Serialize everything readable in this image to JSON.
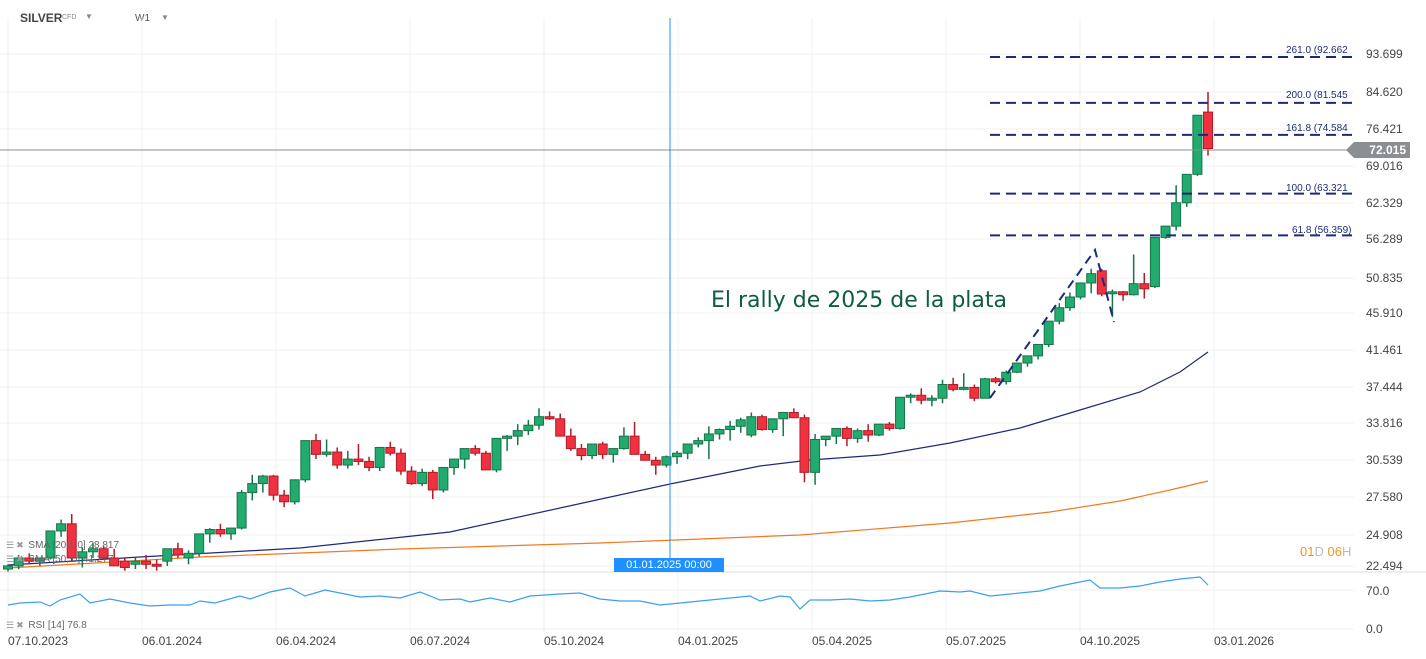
{
  "header": {
    "symbol": "SILVER",
    "symbol_type": "CFD",
    "interval": "W1"
  },
  "annotation": "El rally de 2025 de la plata",
  "last_price": "72.015",
  "crosshair_label": "01.01.2025 00:00",
  "countdown": {
    "days": "01",
    "days_unit": "D",
    "hours": "06",
    "hours_unit": "H"
  },
  "indicators": {
    "sma200": "SMA [200, 0] 28.817",
    "sma50": "SMA [50, 0] 41.277",
    "rsi": "RSI [14] 76.8"
  },
  "y_axis": [
    "93.699",
    "84.620",
    "76.421",
    "69.016",
    "62.329",
    "56.289",
    "50.835",
    "45.910",
    "41.461",
    "37.444",
    "33.816",
    "30.539",
    "27.580",
    "24.908",
    "22.494"
  ],
  "rsi_axis": [
    "70.0",
    "0.0"
  ],
  "x_axis": [
    "07.10.2023",
    "06.01.2024",
    "06.04.2024",
    "06.07.2024",
    "05.10.2024",
    "04.01.2025",
    "05.04.2025",
    "05.07.2025",
    "04.10.2025",
    "03.01.2026"
  ],
  "fibonacci": [
    {
      "label": "261.0 (92.662",
      "price": 92.662
    },
    {
      "label": "200.0 (81.545",
      "price": 81.545
    },
    {
      "label": "161.8 (74.584",
      "price": 74.584
    },
    {
      "label": "100.0 (63.321",
      "price": 63.321
    },
    {
      "label": "61.8 (56.359)",
      "price": 56.359
    }
  ],
  "colors": {
    "up": "#22ab6e",
    "down": "#f0313f",
    "sma50": "#1e2a78",
    "sma200": "#f07a22",
    "rsi": "#3aa0f0",
    "fib": "#1e2a78",
    "crosshair": "#1e90ff",
    "annotation": "#0c5e3e"
  },
  "chart_data": {
    "type": "candlestick",
    "title": "SILVER CFD W1",
    "annotation": "El rally de 2025 de la plata",
    "scale": "log",
    "ylim": [
      22.0,
      96.0
    ],
    "x_tick_labels": [
      "07.10.2023",
      "06.01.2024",
      "06.04.2024",
      "06.07.2024",
      "05.10.2024",
      "04.01.2025",
      "05.04.2025",
      "05.07.2025",
      "04.10.2025",
      "03.01.2026"
    ],
    "last_price": 72.015,
    "fibonacci_levels": [
      {
        "ratio": 261.0,
        "price": 92.662
      },
      {
        "ratio": 200.0,
        "price": 81.545
      },
      {
        "ratio": 161.8,
        "price": 74.584
      },
      {
        "ratio": 100.0,
        "price": 63.321
      },
      {
        "ratio": 61.8,
        "price": 56.359
      }
    ],
    "indicators": [
      {
        "name": "SMA 200",
        "last": 28.817
      },
      {
        "name": "SMA 50",
        "last": 41.277
      },
      {
        "name": "RSI 14",
        "last": 76.8,
        "levels": [
          70.0,
          0.0
        ]
      }
    ],
    "candles_approx": [
      [
        22.3,
        22.6,
        22.1,
        22.5
      ],
      [
        22.5,
        23.2,
        22.3,
        23.0
      ],
      [
        23.0,
        23.3,
        22.6,
        22.8
      ],
      [
        22.8,
        23.0,
        22.5,
        23.0
      ],
      [
        23.0,
        23.6,
        22.9,
        24.8
      ],
      [
        24.8,
        25.6,
        24.4,
        25.3
      ],
      [
        25.3,
        26.0,
        22.8,
        23.0
      ],
      [
        23.0,
        23.7,
        22.4,
        23.4
      ],
      [
        23.4,
        24.0,
        23.0,
        23.6
      ],
      [
        23.6,
        23.8,
        22.9,
        23.0
      ],
      [
        23.0,
        23.6,
        22.6,
        22.5
      ],
      [
        22.8,
        23.0,
        22.2,
        22.4
      ],
      [
        22.6,
        23.0,
        22.3,
        22.8
      ],
      [
        22.8,
        23.2,
        22.3,
        22.6
      ],
      [
        22.6,
        22.9,
        22.2,
        22.5
      ],
      [
        22.8,
        23.6,
        22.5,
        23.6
      ],
      [
        23.6,
        24.0,
        23.0,
        23.2
      ],
      [
        23.0,
        23.5,
        22.6,
        23.3
      ],
      [
        23.3,
        24.2,
        23.1,
        24.6
      ],
      [
        24.6,
        25.0,
        24.0,
        24.9
      ],
      [
        24.9,
        25.3,
        24.4,
        24.6
      ],
      [
        24.6,
        24.9,
        24.2,
        25.0
      ],
      [
        25.0,
        27.8,
        24.9,
        27.6
      ],
      [
        27.6,
        29.0,
        27.0,
        28.3
      ],
      [
        28.3,
        29.0,
        27.6,
        28.9
      ],
      [
        28.9,
        29.0,
        27.0,
        27.4
      ],
      [
        27.4,
        27.8,
        26.5,
        26.9
      ],
      [
        26.9,
        28.3,
        26.7,
        28.6
      ],
      [
        28.6,
        31.0,
        28.4,
        31.9
      ],
      [
        31.9,
        32.5,
        30.3,
        30.7
      ],
      [
        30.7,
        32.0,
        30.5,
        30.9
      ],
      [
        30.9,
        31.3,
        29.5,
        29.8
      ],
      [
        29.8,
        31.0,
        29.5,
        30.3
      ],
      [
        30.3,
        31.6,
        29.8,
        30.1
      ],
      [
        30.1,
        30.5,
        29.3,
        29.6
      ],
      [
        29.6,
        31.0,
        29.3,
        31.3
      ],
      [
        31.3,
        31.8,
        30.6,
        30.8
      ],
      [
        30.8,
        31.2,
        29.0,
        29.3
      ],
      [
        29.3,
        29.7,
        28.2,
        28.3
      ],
      [
        28.3,
        29.5,
        28.1,
        29.2
      ],
      [
        29.2,
        29.4,
        27.1,
        27.8
      ],
      [
        27.8,
        29.6,
        27.6,
        29.6
      ],
      [
        29.6,
        30.2,
        29.0,
        30.3
      ],
      [
        30.3,
        30.7,
        29.5,
        31.2
      ],
      [
        31.2,
        31.5,
        30.6,
        30.8
      ],
      [
        30.8,
        31.0,
        29.8,
        29.4
      ],
      [
        29.4,
        32.1,
        29.2,
        32.1
      ],
      [
        32.1,
        32.4,
        31.0,
        32.3
      ],
      [
        32.3,
        33.4,
        31.5,
        32.8
      ],
      [
        32.8,
        33.8,
        32.4,
        33.3
      ],
      [
        33.3,
        34.9,
        32.9,
        34.1
      ],
      [
        34.1,
        34.6,
        33.8,
        33.9
      ],
      [
        33.9,
        34.4,
        32.3,
        32.3
      ],
      [
        32.3,
        33.0,
        31.0,
        31.2
      ],
      [
        31.2,
        31.6,
        30.2,
        30.6
      ],
      [
        30.6,
        31.6,
        30.3,
        31.6
      ],
      [
        31.6,
        31.8,
        30.3,
        30.7
      ],
      [
        30.7,
        31.0,
        30.0,
        31.2
      ],
      [
        31.2,
        33.1,
        31.1,
        32.3
      ],
      [
        32.3,
        33.6,
        31.1,
        30.7
      ],
      [
        30.7,
        31.0,
        30.3,
        30.2
      ],
      [
        30.2,
        30.5,
        29.0,
        29.8
      ],
      [
        29.8,
        30.6,
        29.6,
        30.5
      ],
      [
        30.5,
        31.0,
        29.9,
        30.8
      ],
      [
        30.8,
        31.5,
        30.3,
        31.6
      ],
      [
        31.6,
        32.2,
        31.3,
        31.9
      ],
      [
        31.9,
        33.2,
        30.3,
        32.5
      ],
      [
        32.5,
        33.0,
        32.0,
        32.9
      ],
      [
        32.9,
        33.7,
        31.9,
        33.2
      ],
      [
        33.2,
        34.0,
        32.6,
        33.8
      ],
      [
        32.4,
        34.5,
        32.2,
        34.1
      ],
      [
        34.1,
        34.3,
        32.8,
        32.9
      ],
      [
        32.9,
        33.5,
        32.6,
        33.9
      ],
      [
        33.9,
        34.5,
        32.3,
        34.5
      ],
      [
        34.5,
        34.9,
        34.0,
        34.0
      ],
      [
        34.0,
        34.3,
        28.4,
        29.2
      ],
      [
        29.2,
        32.5,
        28.2,
        32.0
      ],
      [
        32.0,
        32.3,
        31.4,
        32.3
      ],
      [
        32.3,
        32.9,
        31.6,
        33.0
      ],
      [
        33.0,
        33.2,
        31.4,
        32.1
      ],
      [
        32.1,
        33.0,
        31.7,
        32.8
      ],
      [
        32.8,
        33.4,
        31.8,
        32.4
      ],
      [
        32.4,
        33.4,
        32.3,
        33.4
      ],
      [
        33.4,
        33.6,
        32.8,
        33.0
      ],
      [
        33.0,
        36.0,
        32.9,
        36.0
      ],
      [
        36.0,
        36.4,
        35.4,
        36.2
      ],
      [
        36.2,
        36.9,
        35.3,
        35.7
      ],
      [
        35.7,
        36.2,
        35.1,
        35.9
      ],
      [
        35.9,
        37.8,
        35.4,
        37.3
      ],
      [
        37.3,
        38.0,
        36.6,
        36.8
      ],
      [
        36.8,
        38.5,
        36.7,
        37.0
      ],
      [
        37.0,
        37.3,
        35.6,
        35.9
      ],
      [
        35.9,
        38.0,
        35.9,
        37.9
      ],
      [
        37.9,
        38.1,
        37.4,
        37.6
      ],
      [
        37.6,
        38.8,
        37.3,
        38.6
      ],
      [
        38.6,
        39.5,
        38.5,
        39.6
      ],
      [
        39.6,
        40.3,
        39.2,
        40.4
      ],
      [
        40.4,
        41.5,
        40.0,
        41.7
      ],
      [
        41.7,
        44.2,
        41.4,
        44.5
      ],
      [
        44.5,
        46.8,
        44.1,
        46.2
      ],
      [
        46.2,
        48.2,
        45.8,
        47.6
      ],
      [
        47.6,
        49.2,
        47.3,
        49.5
      ],
      [
        49.5,
        51.5,
        48.1,
        50.8
      ],
      [
        51.2,
        51.5,
        47.7,
        48.0
      ],
      [
        48.1,
        48.6,
        45.0,
        48.3
      ],
      [
        48.3,
        48.4,
        47.1,
        47.9
      ],
      [
        47.9,
        53.6,
        47.8,
        49.4
      ],
      [
        49.4,
        50.9,
        47.4,
        48.7
      ],
      [
        49.0,
        56.2,
        48.8,
        56.2
      ],
      [
        56.2,
        57.2,
        56.0,
        58.0
      ],
      [
        58.0,
        65.0,
        57.3,
        61.9
      ],
      [
        61.9,
        63.6,
        61.2,
        67.0
      ],
      [
        67.0,
        69.0,
        66.7,
        79.0
      ],
      [
        79.7,
        84.3,
        70.6,
        72.0
      ]
    ]
  }
}
